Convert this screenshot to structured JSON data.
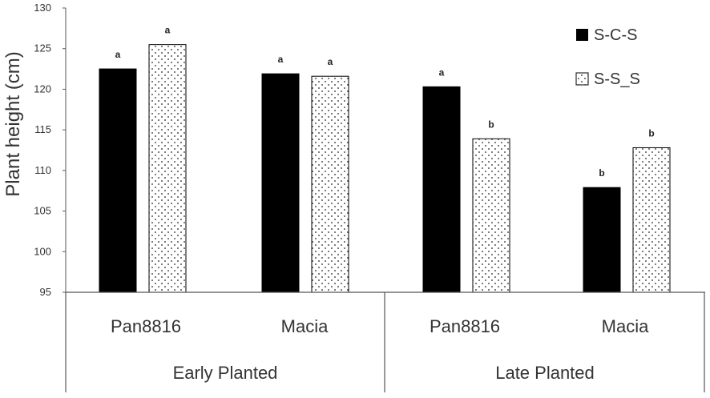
{
  "chart_data": {
    "type": "bar",
    "ylabel": "Plant height (cm)",
    "ylim": [
      95,
      130
    ],
    "yticks": [
      95,
      100,
      105,
      110,
      115,
      120,
      125,
      130
    ],
    "grid": false,
    "legend_position": "top-right",
    "groups": [
      "Early Planted",
      "Late Planted"
    ],
    "categories": [
      "Pan8816",
      "Macia",
      "Pan8816",
      "Macia"
    ],
    "series": [
      {
        "name": "S-C-S",
        "style": "solid",
        "color": "#000000",
        "values": [
          122.5,
          121.9,
          120.3,
          107.9
        ],
        "labels": [
          "a",
          "a",
          "a",
          "b"
        ]
      },
      {
        "name": "S-S_S",
        "style": "dotted",
        "color": "#ffffff",
        "values": [
          125.5,
          121.6,
          113.9,
          112.8
        ],
        "labels": [
          "a",
          "a",
          "b",
          "b"
        ]
      }
    ]
  }
}
